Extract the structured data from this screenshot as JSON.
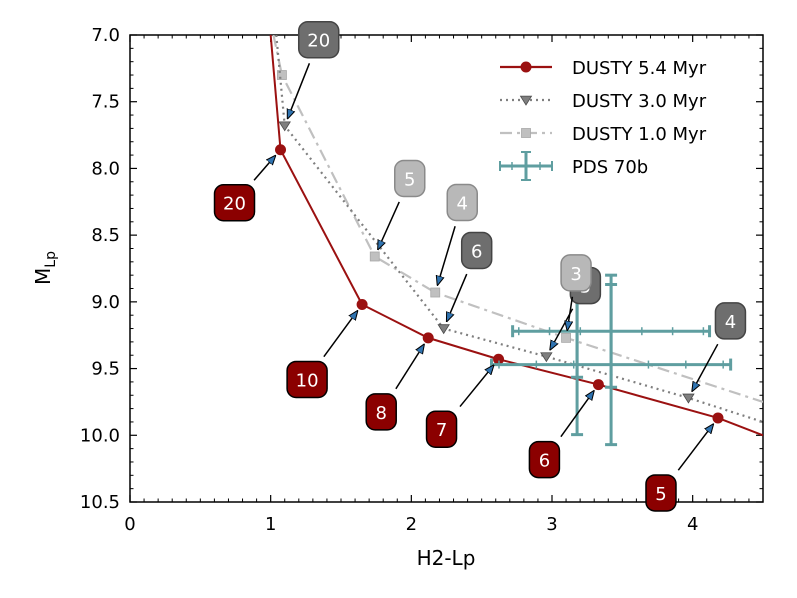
{
  "chart_data": {
    "type": "line",
    "xlabel": "H2-Lp",
    "ylabel_main": "M",
    "ylabel_sub": "Lp",
    "xlim": [
      0,
      4.5
    ],
    "ylim": [
      10.5,
      7.0
    ],
    "y_inverted": true,
    "x_ticks": [
      0,
      1,
      2,
      3,
      4
    ],
    "x_tick_labels": [
      "0",
      "1",
      "2",
      "3",
      "4"
    ],
    "y_ticks": [
      7.0,
      7.5,
      8.0,
      8.5,
      9.0,
      9.5,
      10.0,
      10.5
    ],
    "y_tick_labels": [
      "7.0",
      "7.5",
      "8.0",
      "8.5",
      "9.0",
      "9.5",
      "10.0",
      "10.5"
    ],
    "grid": false,
    "legend_position": "top-right",
    "series": [
      {
        "name": "DUSTY 5.4 Myr",
        "color": "#9b1111",
        "style": "solid",
        "marker": "circle",
        "line_x": [
          1.0,
          1.07,
          1.65,
          2.12,
          2.62,
          3.33,
          4.18,
          4.5
        ],
        "line_y": [
          7.0,
          7.86,
          9.02,
          9.27,
          9.43,
          9.62,
          9.87,
          10.0
        ],
        "points_x": [
          1.07,
          1.65,
          2.12,
          2.62,
          3.33,
          4.18
        ],
        "points_y": [
          7.86,
          9.02,
          9.27,
          9.43,
          9.62,
          9.87
        ]
      },
      {
        "name": "DUSTY 3.0 Myr",
        "color": "#7f7f7f",
        "style": "dotted",
        "marker": "triangle-down",
        "line_x": [
          1.04,
          1.1,
          2.23,
          2.96,
          3.97,
          4.5
        ],
        "line_y": [
          7.0,
          7.68,
          9.2,
          9.41,
          9.72,
          9.9
        ],
        "points_x": [
          1.1,
          2.23,
          2.96,
          3.97
        ],
        "points_y": [
          7.68,
          9.2,
          9.41,
          9.72
        ]
      },
      {
        "name": "DUSTY 1.0 Myr",
        "color": "#c0c0c0",
        "style": "dashdot",
        "marker": "square",
        "line_x": [
          1.02,
          1.08,
          1.74,
          2.17,
          3.1,
          4.5
        ],
        "line_y": [
          7.0,
          7.3,
          8.66,
          8.93,
          9.27,
          9.75
        ],
        "points_x": [
          1.08,
          1.74,
          2.17,
          3.1
        ],
        "points_y": [
          7.3,
          8.66,
          8.93,
          9.27
        ]
      },
      {
        "name": "PDS 70b",
        "color": "#5f9ea0",
        "type": "errorbar",
        "points": [
          {
            "x": 3.42,
            "y": 9.47,
            "xerr": 0.85,
            "yerr": 0.6
          },
          {
            "x": 3.42,
            "y": 9.22,
            "xerr": 0.7,
            "yerr": 0.42
          }
        ]
      }
    ],
    "annotations": [
      {
        "text": "20",
        "theme": "red",
        "target_x": 1.07,
        "target_y": 7.86
      },
      {
        "text": "10",
        "theme": "red",
        "target_x": 1.65,
        "target_y": 9.02
      },
      {
        "text": "8",
        "theme": "red",
        "target_x": 2.12,
        "target_y": 9.27
      },
      {
        "text": "7",
        "theme": "red",
        "target_x": 2.62,
        "target_y": 9.43
      },
      {
        "text": "6",
        "theme": "red",
        "target_x": 3.33,
        "target_y": 9.62
      },
      {
        "text": "5",
        "theme": "red",
        "target_x": 4.18,
        "target_y": 9.87
      },
      {
        "text": "20",
        "theme": "dark",
        "target_x": 1.1,
        "target_y": 7.68
      },
      {
        "text": "6",
        "theme": "dark",
        "target_x": 2.23,
        "target_y": 9.2
      },
      {
        "text": "5",
        "theme": "dark",
        "target_x": 2.96,
        "target_y": 9.41
      },
      {
        "text": "4",
        "theme": "dark",
        "target_x": 3.97,
        "target_y": 9.72
      },
      {
        "text": "5",
        "theme": "light",
        "target_x": 1.74,
        "target_y": 8.66
      },
      {
        "text": "4",
        "theme": "light",
        "target_x": 2.17,
        "target_y": 8.93
      },
      {
        "text": "3",
        "theme": "light",
        "target_x": 3.1,
        "target_y": 9.27
      }
    ],
    "colors": {
      "red_box": "#8b0000",
      "dark_box": "#6e6e6e",
      "light_box": "#b8b8b8",
      "arrow_fill": "#2f73b0"
    }
  }
}
